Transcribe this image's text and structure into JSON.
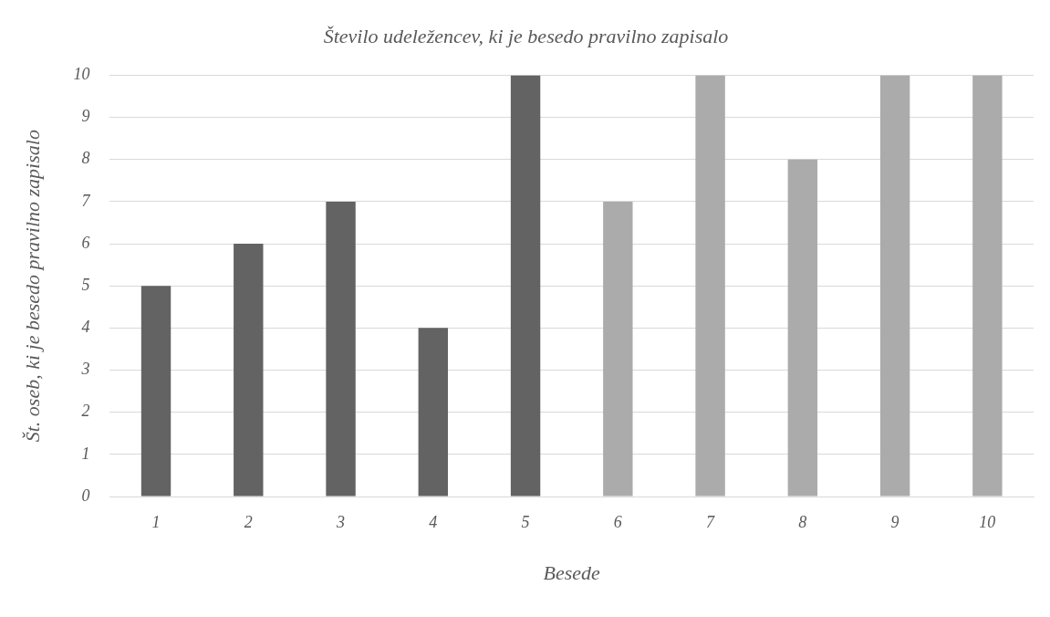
{
  "chart_data": {
    "type": "bar",
    "title": "Število udeležencev, ki je besedo pravilno zapisalo",
    "xlabel": "Besede",
    "ylabel": "Št. oseb, ki je besedo pravilno zapisalo",
    "categories": [
      "1",
      "2",
      "3",
      "4",
      "5",
      "6",
      "7",
      "8",
      "9",
      "10"
    ],
    "values": [
      5,
      6,
      7,
      4,
      10,
      7,
      10,
      8,
      10,
      10
    ],
    "colors": [
      "#636363",
      "#636363",
      "#636363",
      "#636363",
      "#636363",
      "#ababab",
      "#ababab",
      "#ababab",
      "#ababab",
      "#ababab"
    ],
    "ylim": [
      0,
      10
    ],
    "yticks": [
      0,
      1,
      2,
      3,
      4,
      5,
      6,
      7,
      8,
      9,
      10
    ],
    "grid": "y",
    "legend": false
  }
}
